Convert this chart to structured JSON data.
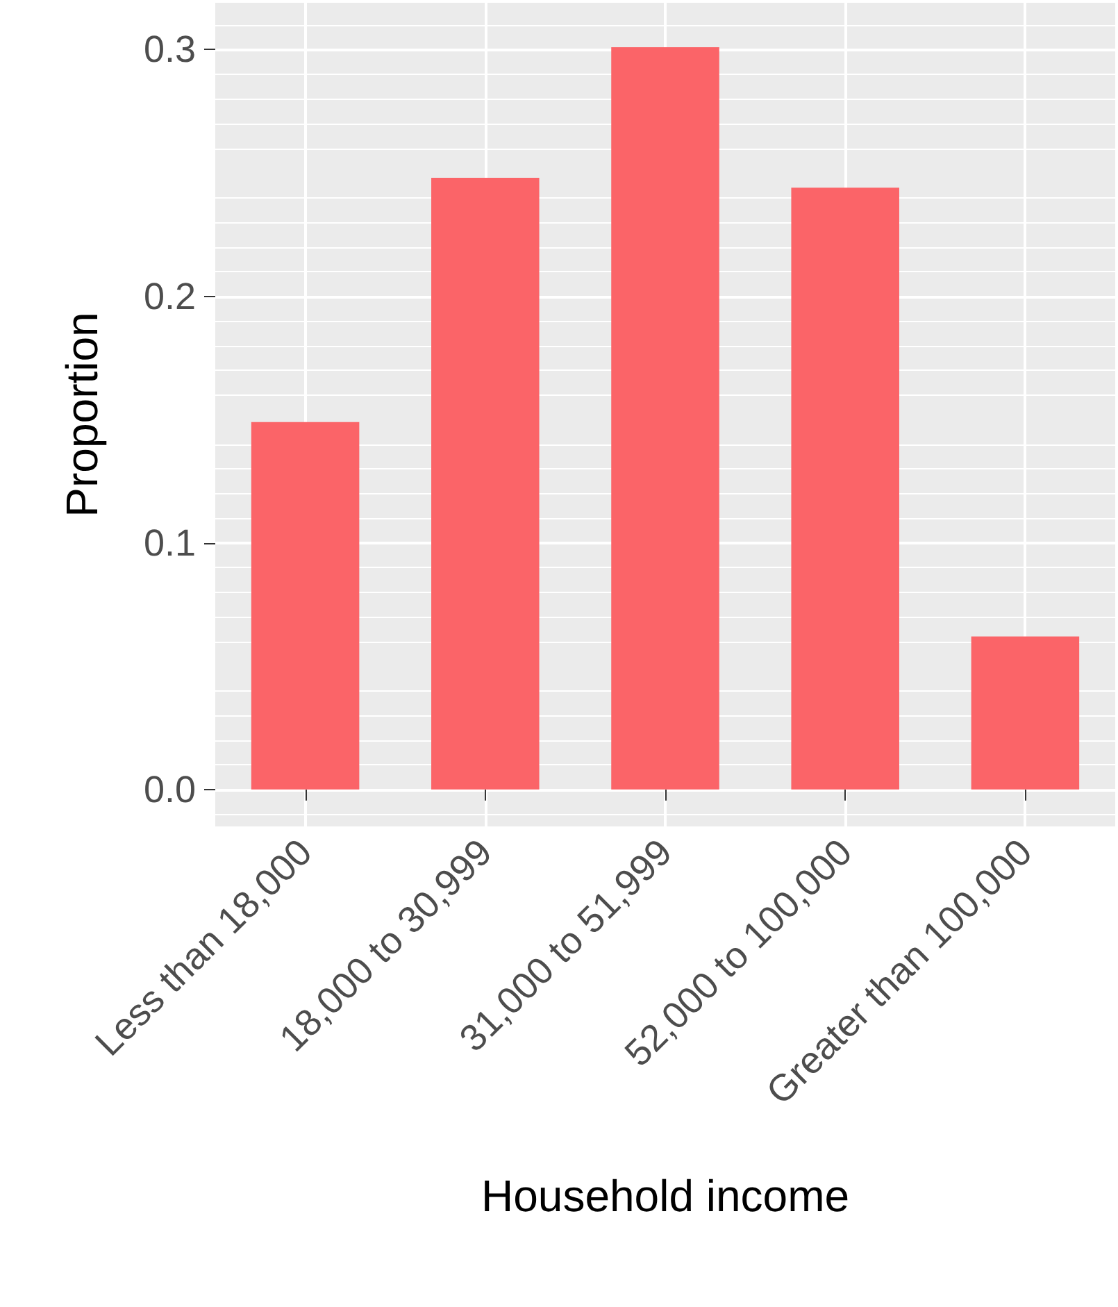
{
  "chart_data": {
    "type": "bar",
    "xlabel": "Household income",
    "ylabel": "Proportion",
    "categories": [
      "Less than 18,000",
      "18,000 to 30,999",
      "31,000 to 51,999",
      "52,000 to 100,000",
      "Greater than 100,000"
    ],
    "values": [
      0.149,
      0.248,
      0.301,
      0.244,
      0.062
    ],
    "color": "#fb6468",
    "ylim": [
      -0.015,
      0.319
    ],
    "yticks": [
      {
        "value": 0,
        "label": "0.0"
      },
      {
        "value": 0.1,
        "label": "0.1"
      },
      {
        "value": 0.2,
        "label": "0.2"
      },
      {
        "value": 0.3,
        "label": "0.3"
      }
    ],
    "grid": true
  }
}
